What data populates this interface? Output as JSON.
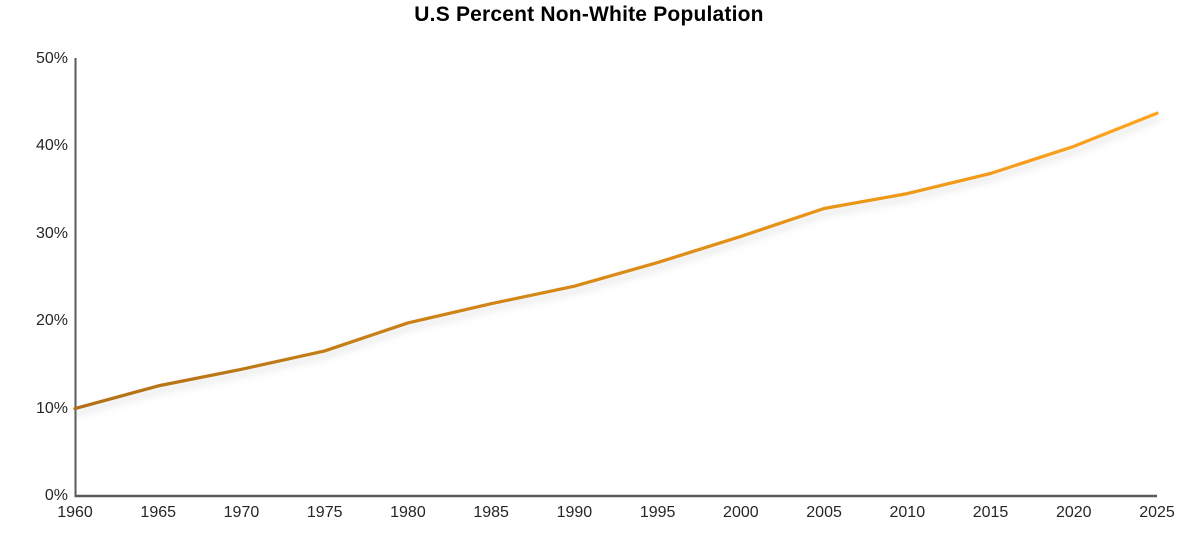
{
  "chart_data": {
    "type": "line",
    "title": "U.S Percent Non-White Population",
    "series": [
      {
        "name": "Percent Non-White",
        "x": [
          1960,
          1965,
          1970,
          1975,
          1980,
          1985,
          1990,
          1995,
          2000,
          2005,
          2010,
          2015,
          2020,
          2025
        ],
        "values": [
          10,
          12.6,
          14.5,
          16.6,
          19.8,
          22,
          24,
          26.7,
          29.7,
          32.9,
          34.6,
          36.9,
          40,
          43.8
        ]
      }
    ],
    "xlabel": "",
    "ylabel": "",
    "xlim": [
      1960,
      2025
    ],
    "ylim": [
      0,
      50
    ],
    "xtick_labels": [
      "1960",
      "1965",
      "1970",
      "1975",
      "1980",
      "1985",
      "1990",
      "1995",
      "2000",
      "2005",
      "2010",
      "2015",
      "2020",
      "2025"
    ],
    "ytick_labels": [
      "0%",
      "10%",
      "20%",
      "30%",
      "40%",
      "50%"
    ],
    "ytick_values": [
      0,
      10,
      20,
      30,
      40,
      50
    ],
    "grid": false,
    "legend": false,
    "line_gradient": [
      "#B17018",
      "#DE8E12",
      "#FFA41E"
    ],
    "line_shadow_color": "#9a9a9a",
    "axis_color": "#5a5a5a",
    "tick_label_color": "#262626",
    "title_color": "#000000",
    "background_color": "#ffffff"
  }
}
